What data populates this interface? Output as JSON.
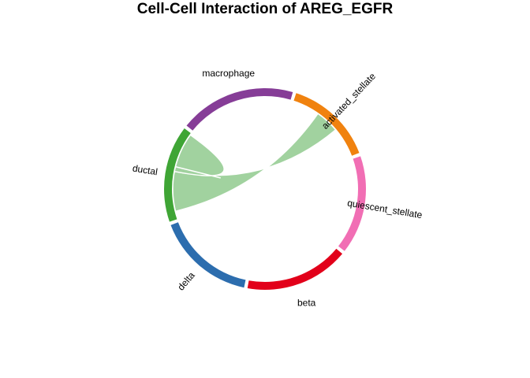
{
  "title": "Cell-Cell Interaction of AREG_EGFR",
  "chart_data": {
    "type": "chord",
    "title": "Cell-Cell Interaction of AREG_EGFR",
    "sectors": [
      {
        "name": "activated_stellate",
        "color": "#F0820F",
        "start": 18,
        "end": 69
      },
      {
        "name": "quiescent_stellate",
        "color": "#F16EB4",
        "start": 71,
        "end": 128
      },
      {
        "name": "beta",
        "color": "#E2001A",
        "start": 130,
        "end": 190
      },
      {
        "name": "delta",
        "color": "#2C6DAE",
        "start": 192,
        "end": 249
      },
      {
        "name": "ductal",
        "color": "#3FA535",
        "start": 251,
        "end": 307
      },
      {
        "name": "macrophage",
        "color": "#863D97",
        "start": 309,
        "end": 376
      }
    ],
    "links": [
      {
        "source": "ductal",
        "target": "activated_stellate",
        "color": "#A1D29F",
        "source_span": [
          256,
          281
        ],
        "target_span": [
          50,
          35
        ]
      },
      {
        "source": "ductal",
        "target": "ductal",
        "color": "#A1D29F",
        "source_span": [
          284,
          306
        ],
        "target_span": [
          281,
          284
        ]
      }
    ]
  }
}
